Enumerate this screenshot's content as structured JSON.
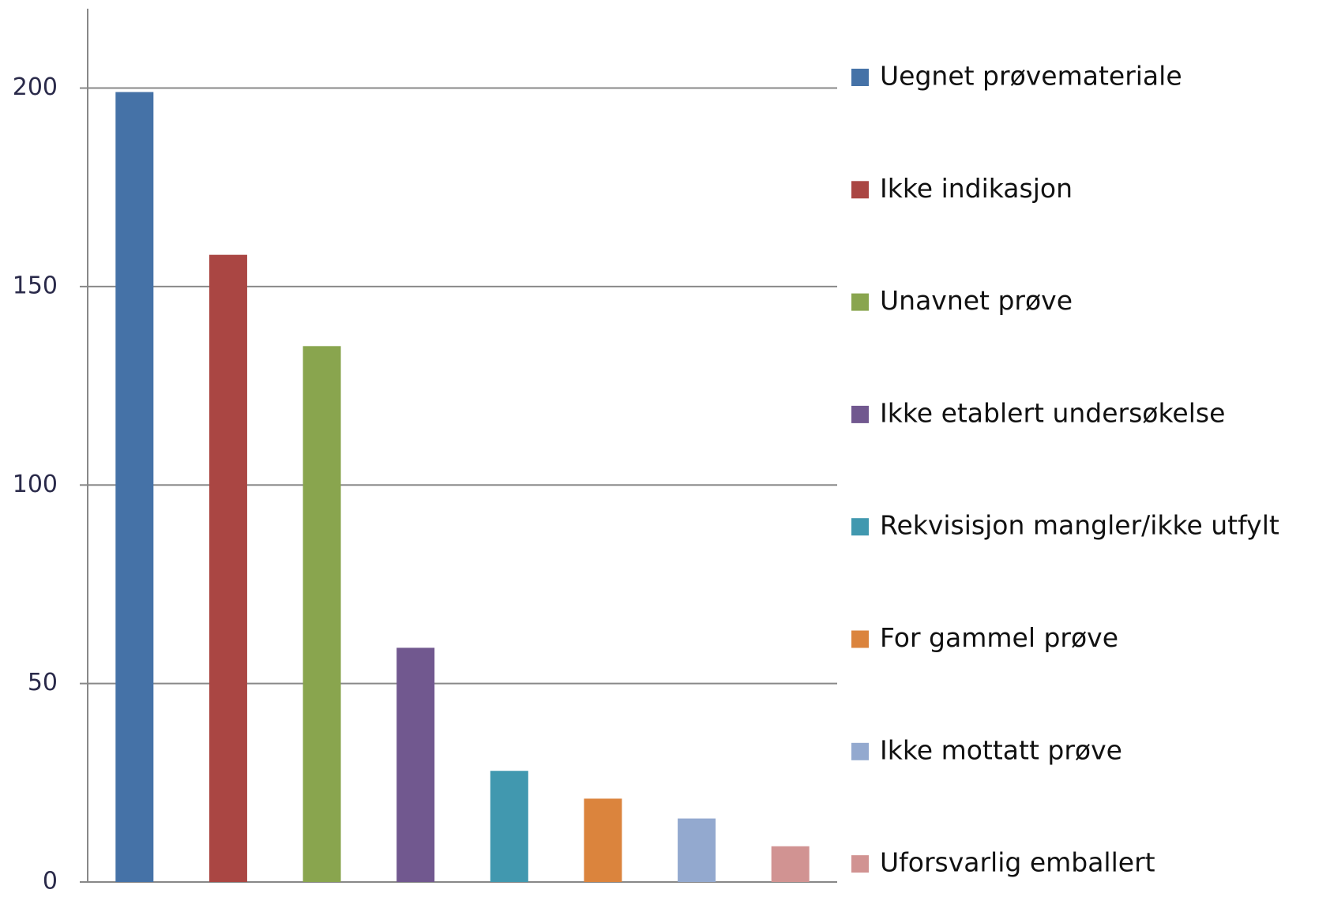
{
  "chart_data": {
    "type": "bar",
    "categories": [
      "Uegnet prøvemateriale",
      "Ikke indikasjon",
      "Unavnet prøve",
      "Ikke etablert undersøkelse",
      "Rekvisisjon mangler/ikke utfylt",
      "For gammel prøve",
      "Ikke mottatt prøve",
      "Uforsvarlig emballert"
    ],
    "values": [
      199,
      158,
      135,
      59,
      28,
      21,
      16,
      9
    ],
    "colors": [
      "#4572a7",
      "#aa4643",
      "#89a54e",
      "#71588f",
      "#4198af",
      "#db843d",
      "#93a9cf",
      "#d19392"
    ],
    "ylim": [
      0,
      220
    ],
    "yticks": [
      0,
      50,
      100,
      150,
      200
    ],
    "grid": true,
    "legend": "right"
  }
}
